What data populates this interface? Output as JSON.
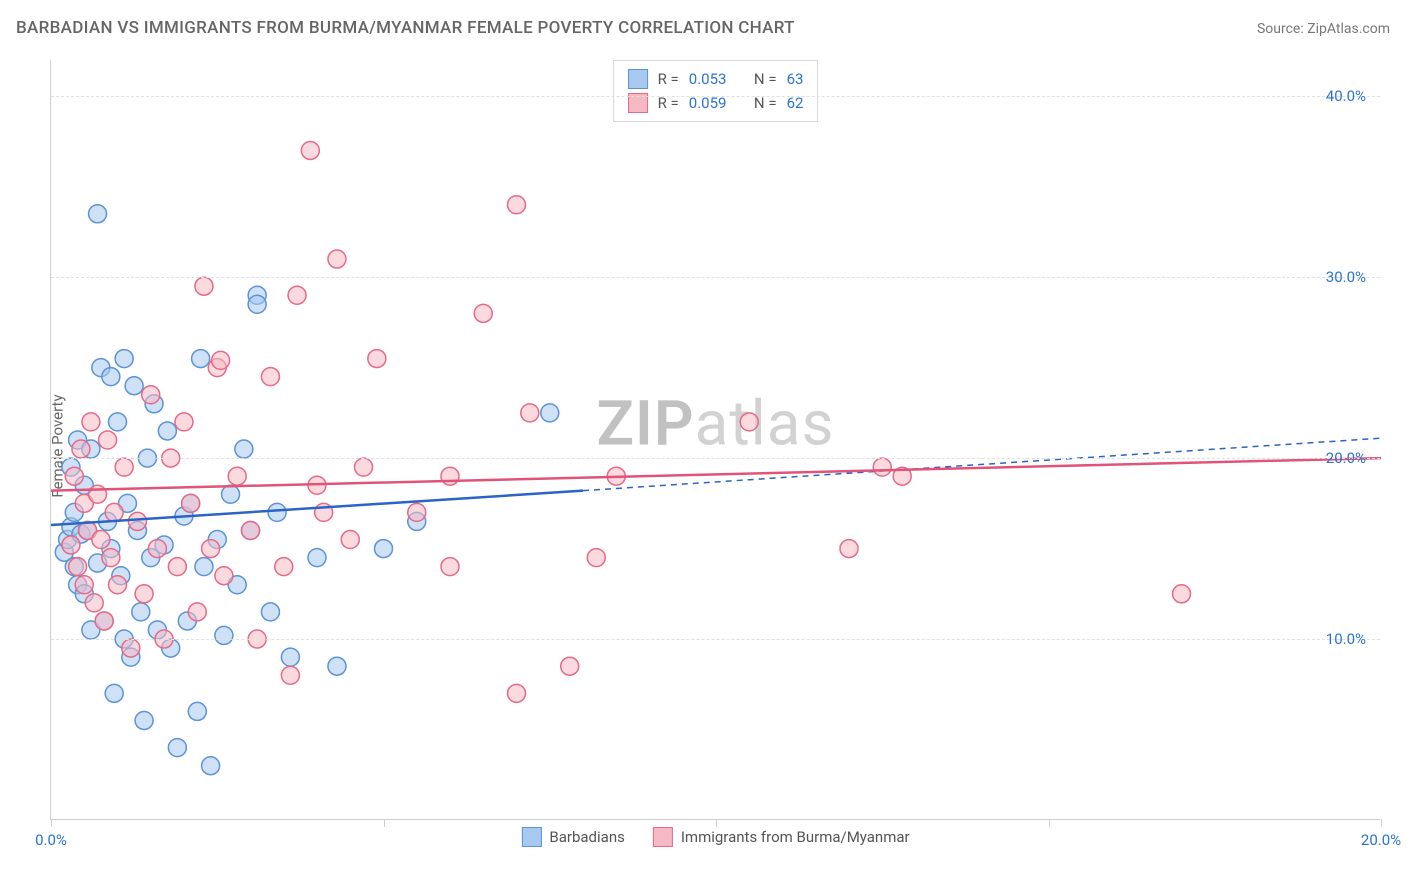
{
  "title": "BARBADIAN VS IMMIGRANTS FROM BURMA/MYANMAR FEMALE POVERTY CORRELATION CHART",
  "source_label": "Source:",
  "source_value": "ZipAtlas.com",
  "ylabel": "Female Poverty",
  "watermark_a": "ZIP",
  "watermark_b": "atlas",
  "chart": {
    "type": "scatter",
    "xlim": [
      0,
      20
    ],
    "ylim": [
      0,
      42
    ],
    "xticks": [
      0,
      5,
      10,
      15,
      20
    ],
    "xtick_labels": [
      "0.0%",
      "",
      "",
      "",
      "20.0%"
    ],
    "yticks": [
      10,
      20,
      30,
      40
    ],
    "ytick_labels": [
      "10.0%",
      "20.0%",
      "30.0%",
      "40.0%"
    ],
    "grid_color": "#e0e0e0",
    "axis_color": "#cfcfcf",
    "tick_label_color": "#2b74d0",
    "point_radius": 9,
    "point_stroke_width": 1.5,
    "point_opacity": 0.55,
    "series": [
      {
        "id": "barbadians",
        "label": "Barbadians",
        "fill": "#a7c9f0",
        "stroke": "#5b94d6",
        "R": "0.053",
        "N": "63",
        "trend": {
          "solid": {
            "x1": 0,
            "y1": 16.3,
            "x2": 8,
            "y2": 18.2
          },
          "dashed": {
            "x1": 8,
            "y1": 18.2,
            "x2": 20,
            "y2": 21.1
          },
          "color": "#2b63c7"
        },
        "points": [
          [
            0.2,
            14.8
          ],
          [
            0.25,
            15.5
          ],
          [
            0.3,
            16.2
          ],
          [
            0.3,
            19.5
          ],
          [
            0.35,
            14.0
          ],
          [
            0.35,
            17.0
          ],
          [
            0.4,
            13.0
          ],
          [
            0.4,
            21.0
          ],
          [
            0.45,
            15.8
          ],
          [
            0.5,
            12.5
          ],
          [
            0.5,
            18.5
          ],
          [
            0.55,
            16.0
          ],
          [
            0.6,
            10.5
          ],
          [
            0.6,
            20.5
          ],
          [
            0.7,
            33.5
          ],
          [
            0.7,
            14.2
          ],
          [
            0.75,
            25.0
          ],
          [
            0.8,
            11.0
          ],
          [
            0.85,
            16.5
          ],
          [
            0.9,
            15.0
          ],
          [
            0.9,
            24.5
          ],
          [
            0.95,
            7.0
          ],
          [
            1.0,
            22.0
          ],
          [
            1.05,
            13.5
          ],
          [
            1.1,
            25.5
          ],
          [
            1.1,
            10.0
          ],
          [
            1.15,
            17.5
          ],
          [
            1.2,
            9.0
          ],
          [
            1.25,
            24.0
          ],
          [
            1.3,
            16.0
          ],
          [
            1.35,
            11.5
          ],
          [
            1.4,
            5.5
          ],
          [
            1.45,
            20.0
          ],
          [
            1.5,
            14.5
          ],
          [
            1.55,
            23.0
          ],
          [
            1.6,
            10.5
          ],
          [
            1.7,
            15.2
          ],
          [
            1.75,
            21.5
          ],
          [
            1.8,
            9.5
          ],
          [
            1.9,
            4.0
          ],
          [
            2.0,
            16.8
          ],
          [
            2.05,
            11.0
          ],
          [
            2.1,
            17.5
          ],
          [
            2.2,
            6.0
          ],
          [
            2.25,
            25.5
          ],
          [
            2.3,
            14.0
          ],
          [
            2.4,
            3.0
          ],
          [
            2.5,
            15.5
          ],
          [
            2.6,
            10.2
          ],
          [
            2.7,
            18.0
          ],
          [
            2.8,
            13.0
          ],
          [
            2.9,
            20.5
          ],
          [
            3.0,
            16.0
          ],
          [
            3.1,
            29.0
          ],
          [
            3.1,
            28.5
          ],
          [
            3.3,
            11.5
          ],
          [
            3.4,
            17.0
          ],
          [
            3.6,
            9.0
          ],
          [
            4.0,
            14.5
          ],
          [
            4.3,
            8.5
          ],
          [
            5.0,
            15.0
          ],
          [
            5.5,
            16.5
          ],
          [
            7.5,
            22.5
          ]
        ]
      },
      {
        "id": "burma",
        "label": "Immigrants from Burma/Myanmar",
        "fill": "#f6b9c4",
        "stroke": "#e66a87",
        "R": "0.059",
        "N": "62",
        "trend": {
          "solid": {
            "x1": 0,
            "y1": 18.2,
            "x2": 20,
            "y2": 20.0
          },
          "dashed": null,
          "color": "#e15378"
        },
        "points": [
          [
            0.3,
            15.2
          ],
          [
            0.35,
            19.0
          ],
          [
            0.4,
            14.0
          ],
          [
            0.45,
            20.5
          ],
          [
            0.5,
            13.0
          ],
          [
            0.5,
            17.5
          ],
          [
            0.55,
            16.0
          ],
          [
            0.6,
            22.0
          ],
          [
            0.65,
            12.0
          ],
          [
            0.7,
            18.0
          ],
          [
            0.75,
            15.5
          ],
          [
            0.8,
            11.0
          ],
          [
            0.85,
            21.0
          ],
          [
            0.9,
            14.5
          ],
          [
            0.95,
            17.0
          ],
          [
            1.0,
            13.0
          ],
          [
            1.1,
            19.5
          ],
          [
            1.2,
            9.5
          ],
          [
            1.3,
            16.5
          ],
          [
            1.4,
            12.5
          ],
          [
            1.5,
            23.5
          ],
          [
            1.6,
            15.0
          ],
          [
            1.7,
            10.0
          ],
          [
            1.8,
            20.0
          ],
          [
            1.9,
            14.0
          ],
          [
            2.0,
            22.0
          ],
          [
            2.1,
            17.5
          ],
          [
            2.2,
            11.5
          ],
          [
            2.3,
            29.5
          ],
          [
            2.4,
            15.0
          ],
          [
            2.5,
            25.0
          ],
          [
            2.55,
            25.4
          ],
          [
            2.6,
            13.5
          ],
          [
            2.8,
            19.0
          ],
          [
            3.0,
            16.0
          ],
          [
            3.1,
            10.0
          ],
          [
            3.3,
            24.5
          ],
          [
            3.5,
            14.0
          ],
          [
            3.6,
            8.0
          ],
          [
            3.7,
            29.0
          ],
          [
            3.9,
            37.0
          ],
          [
            4.0,
            18.5
          ],
          [
            4.1,
            17.0
          ],
          [
            4.3,
            31.0
          ],
          [
            4.5,
            15.5
          ],
          [
            4.7,
            19.5
          ],
          [
            4.9,
            25.5
          ],
          [
            5.5,
            17.0
          ],
          [
            6.0,
            14.0
          ],
          [
            6.0,
            19.0
          ],
          [
            6.5,
            28.0
          ],
          [
            7.0,
            34.0
          ],
          [
            7.2,
            22.5
          ],
          [
            7.8,
            8.5
          ],
          [
            8.2,
            14.5
          ],
          [
            8.5,
            19.0
          ],
          [
            10.5,
            22.0
          ],
          [
            12.0,
            15.0
          ],
          [
            12.5,
            19.5
          ],
          [
            12.8,
            19.0
          ],
          [
            17.0,
            12.5
          ],
          [
            7.0,
            7.0
          ]
        ]
      }
    ]
  },
  "legend_top": {
    "R_label": "R =",
    "N_label": "N ="
  }
}
